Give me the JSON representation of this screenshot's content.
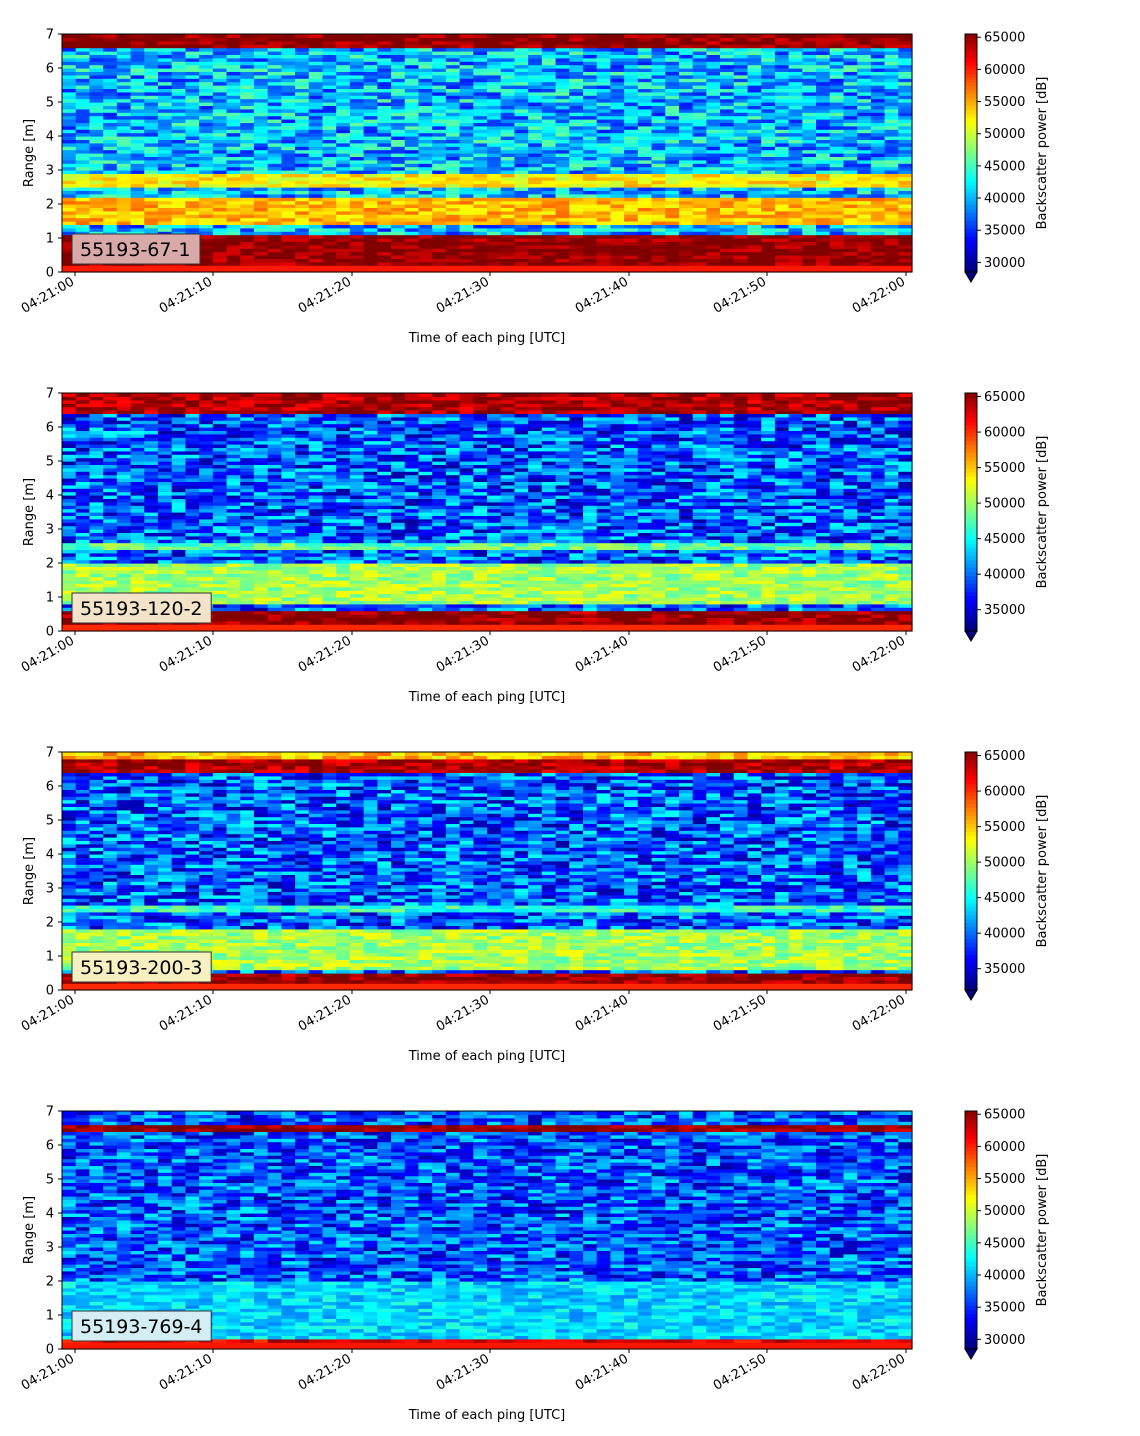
{
  "charts_meta": {
    "x_axis_label": "Time of each ping [UTC]",
    "y_axis_label": "Range [m]",
    "colorbar_label": "Backscatter power [dB]",
    "x_tick_labels": [
      "04:21:00",
      "04:21:10",
      "04:21:20",
      "04:21:30",
      "04:21:40",
      "04:21:50",
      "04:22:00"
    ],
    "y_tick_labels": [
      "0",
      "1",
      "2",
      "3",
      "4",
      "5",
      "6",
      "7"
    ],
    "colormap": "jet"
  },
  "chart_data": [
    {
      "type": "heatmap",
      "panel_label": "55193-67-1",
      "label_box_color": "#d9a8a8",
      "xlabel": "Time of each ping [UTC]",
      "ylabel": "Range [m]",
      "xlim": [
        "04:20:59",
        "04:22:00"
      ],
      "ylim": [
        0,
        7
      ],
      "colorbar": {
        "label": "Backscatter power [dB]",
        "min": 28500,
        "max": 65500,
        "ticks": [
          "30000",
          "35000",
          "40000",
          "45000",
          "50000",
          "55000",
          "60000",
          "65000"
        ]
      },
      "bands": [
        {
          "range_m": [
            0.2,
            1.1
          ],
          "power": 65000
        },
        {
          "range_m": [
            1.4,
            2.2
          ],
          "power": 54000
        },
        {
          "range_m": [
            2.5,
            2.9
          ],
          "power": 52000
        },
        {
          "range_m": [
            6.6,
            7.0
          ],
          "power": 65000
        }
      ],
      "background_power": 40000
    },
    {
      "type": "heatmap",
      "panel_label": "55193-120-2",
      "label_box_color": "#f3e3c8",
      "xlabel": "Time of each ping [UTC]",
      "ylabel": "Range [m]",
      "xlim": [
        "04:20:59",
        "04:22:00"
      ],
      "ylim": [
        0,
        7
      ],
      "colorbar": {
        "label": "Backscatter power [dB]",
        "min": 32000,
        "max": 65500,
        "ticks": [
          "35000",
          "40000",
          "45000",
          "50000",
          "55000",
          "60000",
          "65000"
        ]
      },
      "bands": [
        {
          "range_m": [
            0.2,
            0.6
          ],
          "power": 65000
        },
        {
          "range_m": [
            0.8,
            2.0
          ],
          "power": 50000
        },
        {
          "range_m": [
            2.4,
            2.6
          ],
          "power": 48000
        },
        {
          "range_m": [
            6.4,
            7.0
          ],
          "power": 64000
        }
      ],
      "background_power": 39000
    },
    {
      "type": "heatmap",
      "panel_label": "55193-200-3",
      "label_box_color": "#f7f0c0",
      "xlabel": "Time of each ping [UTC]",
      "ylabel": "Range [m]",
      "xlim": [
        "04:20:59",
        "04:22:00"
      ],
      "ylim": [
        0,
        7
      ],
      "colorbar": {
        "label": "Backscatter power [dB]",
        "min": 32000,
        "max": 65500,
        "ticks": [
          "35000",
          "40000",
          "45000",
          "50000",
          "55000",
          "60000",
          "65000"
        ]
      },
      "bands": [
        {
          "range_m": [
            0.2,
            0.5
          ],
          "power": 65000
        },
        {
          "range_m": [
            0.6,
            1.8
          ],
          "power": 50000
        },
        {
          "range_m": [
            2.3,
            2.5
          ],
          "power": 46000
        },
        {
          "range_m": [
            6.4,
            6.8
          ],
          "power": 64000
        },
        {
          "range_m": [
            6.8,
            7.0
          ],
          "power": 55000
        }
      ],
      "background_power": 39000
    },
    {
      "type": "heatmap",
      "panel_label": "55193-769-4",
      "label_box_color": "#d4eef4",
      "xlabel": "Time of each ping [UTC]",
      "ylabel": "Range [m]",
      "xlim": [
        "04:20:59",
        "04:22:00"
      ],
      "ylim": [
        0,
        7
      ],
      "colorbar": {
        "label": "Backscatter power [dB]",
        "min": 28500,
        "max": 65500,
        "ticks": [
          "30000",
          "35000",
          "40000",
          "45000",
          "50000",
          "55000",
          "60000",
          "65000"
        ]
      },
      "bands": [
        {
          "range_m": [
            0.2,
            0.35
          ],
          "power": 62000
        },
        {
          "range_m": [
            0.35,
            2.0
          ],
          "power": 41000
        },
        {
          "range_m": [
            6.4,
            6.6
          ],
          "power": 65000
        }
      ],
      "background_power": 36000
    }
  ]
}
